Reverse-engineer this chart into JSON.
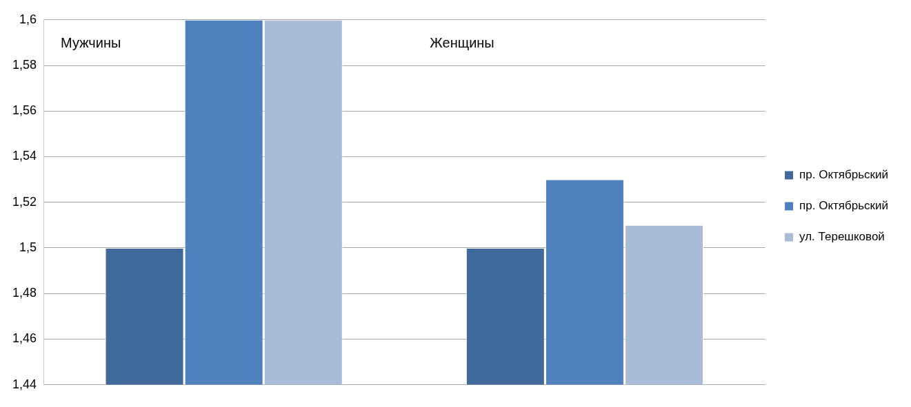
{
  "chart_data": {
    "type": "bar",
    "categories": [
      null,
      null
    ],
    "series": [
      {
        "name": "пр. Октябрьский",
        "color": "#3f6a9b",
        "values": [
          1.5,
          1.5
        ]
      },
      {
        "name": "пр. Октябрьский",
        "color": "#4e81bd",
        "values": [
          1.6,
          1.53
        ]
      },
      {
        "name": "ул. Терешковой",
        "color": "#aabbd8",
        "values": [
          1.6,
          1.51
        ]
      }
    ],
    "annotations": [
      "Мужчины",
      "Женщины"
    ],
    "ylim": [
      1.44,
      1.6
    ],
    "yticks": [
      {
        "value": 1.44,
        "label": "1,44"
      },
      {
        "value": 1.46,
        "label": "1,46"
      },
      {
        "value": 1.48,
        "label": "1,48"
      },
      {
        "value": 1.5,
        "label": "1,5"
      },
      {
        "value": 1.52,
        "label": "1,52"
      },
      {
        "value": 1.54,
        "label": "1,54"
      },
      {
        "value": 1.56,
        "label": "1,56"
      },
      {
        "value": 1.58,
        "label": "1,58"
      },
      {
        "value": 1.6,
        "label": "1,6"
      }
    ],
    "grid": "y",
    "legend": "right"
  }
}
